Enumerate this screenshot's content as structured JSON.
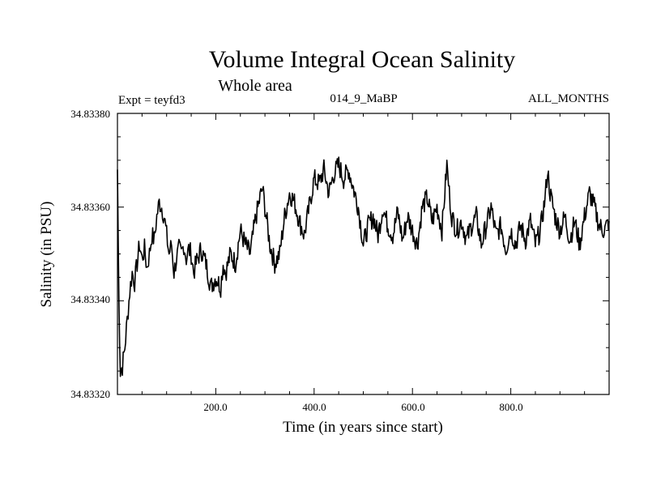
{
  "chart_data": {
    "type": "line",
    "title": "Volume Integral Ocean Salinity",
    "subtitle": "Whole area",
    "experiment": "Expt = teyfd3",
    "run_label": "014_9_MaBP",
    "period_label": "ALL_MONTHS",
    "xlabel": "Time (in years since start)",
    "ylabel": "Salinity (in PSU)",
    "xlim": [
      0,
      1000
    ],
    "ylim": [
      34.8332,
      34.8338
    ],
    "x_ticks": [
      200,
      400,
      600,
      800
    ],
    "x_tick_labels": [
      "200.0",
      "400.0",
      "600.0",
      "800.0"
    ],
    "y_ticks": [
      34.8332,
      34.8334,
      34.8336,
      34.8338
    ],
    "y_tick_labels": [
      "34.83320",
      "34.83340",
      "34.83360",
      "34.83380"
    ],
    "grid": false,
    "series": [
      {
        "name": "salinity",
        "x": [
          0,
          3,
          6,
          10,
          15,
          20,
          25,
          30,
          35,
          40,
          45,
          50,
          55,
          60,
          65,
          70,
          75,
          80,
          85,
          90,
          95,
          100,
          105,
          110,
          115,
          120,
          125,
          130,
          135,
          140,
          145,
          150,
          155,
          160,
          170,
          180,
          190,
          200,
          210,
          215,
          220,
          230,
          240,
          250,
          260,
          270,
          280,
          290,
          295,
          300,
          310,
          320,
          330,
          340,
          350,
          360,
          370,
          380,
          390,
          400,
          410,
          420,
          430,
          440,
          450,
          460,
          470,
          480,
          490,
          500,
          510,
          520,
          530,
          540,
          550,
          560,
          570,
          580,
          590,
          600,
          610,
          620,
          630,
          640,
          650,
          660,
          670,
          675,
          680,
          690,
          700,
          710,
          720,
          730,
          740,
          750,
          760,
          770,
          780,
          790,
          800,
          810,
          820,
          830,
          840,
          850,
          860,
          870,
          875,
          880,
          890,
          900,
          910,
          920,
          930,
          940,
          950,
          960,
          970,
          980,
          990,
          1000
        ],
        "values": [
          34.83368,
          34.8334,
          34.83325,
          34.83326,
          34.8333,
          34.83336,
          34.83342,
          34.83346,
          34.83344,
          34.83348,
          34.83352,
          34.83349,
          34.83351,
          34.83347,
          34.8335,
          34.83354,
          34.83353,
          34.83358,
          34.83361,
          34.8336,
          34.83358,
          34.83354,
          34.8335,
          34.83352,
          34.83346,
          34.83349,
          34.83351,
          34.8335,
          34.83352,
          34.83349,
          34.83351,
          34.8335,
          34.83346,
          34.83348,
          34.83351,
          34.83348,
          34.83343,
          34.83345,
          34.83343,
          34.83348,
          34.83346,
          34.8335,
          34.83348,
          34.83355,
          34.83352,
          34.8335,
          34.83357,
          34.83362,
          34.83364,
          34.8336,
          34.83352,
          34.83348,
          34.8335,
          34.83358,
          34.83363,
          34.83361,
          34.83357,
          34.83354,
          34.8336,
          34.83366,
          34.83365,
          34.83368,
          34.83363,
          34.83367,
          34.83369,
          34.83366,
          34.83368,
          34.83364,
          34.8336,
          34.83352,
          34.83356,
          34.83358,
          34.83354,
          34.8336,
          34.83356,
          34.83354,
          34.83359,
          34.83353,
          34.83358,
          34.83355,
          34.83352,
          34.8336,
          34.83362,
          34.83357,
          34.8336,
          34.83355,
          34.83369,
          34.83363,
          34.83358,
          34.83355,
          34.83357,
          34.83353,
          34.83356,
          34.83358,
          34.83352,
          34.83356,
          34.8336,
          34.83354,
          34.83356,
          34.83351,
          34.83355,
          34.83352,
          34.83356,
          34.83353,
          34.83357,
          34.83352,
          34.83355,
          34.83362,
          34.83368,
          34.83363,
          34.83358,
          34.83355,
          34.83358,
          34.83353,
          34.83357,
          34.83352,
          34.83358,
          34.83363,
          34.8336,
          34.83356,
          34.83355,
          34.83357
        ]
      }
    ]
  }
}
